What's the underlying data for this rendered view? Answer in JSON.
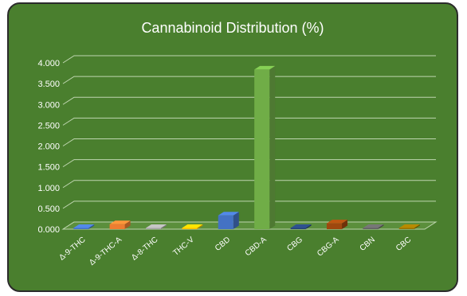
{
  "chart_data": {
    "type": "bar",
    "title": "Cannabinoid Distribution (%)",
    "xlabel": "",
    "ylabel": "",
    "categories": [
      "Δ-9-THC",
      "Δ-9-THC-A",
      "Δ-8-THC",
      "THC-V",
      "CBD",
      "CBD-A",
      "CBG",
      "CBG-A",
      "CBN",
      "CBC"
    ],
    "values": [
      0.0,
      0.12,
      0.0,
      0.01,
      0.33,
      3.84,
      0.01,
      0.14,
      0.0,
      0.0
    ],
    "ylim": [
      0,
      4.0
    ],
    "yticks": [
      "0.000",
      "0.500",
      "1.000",
      "1.500",
      "2.000",
      "2.500",
      "3.000",
      "3.500",
      "4.000"
    ],
    "grid": true,
    "legend": "none",
    "colors": [
      "#4472c4",
      "#ed7d31",
      "#a5a5a5",
      "#ffc000",
      "#4472c4",
      "#70ad47",
      "#264478",
      "#9e480e",
      "#636363",
      "#997300"
    ],
    "background": "#4a7f2e"
  }
}
